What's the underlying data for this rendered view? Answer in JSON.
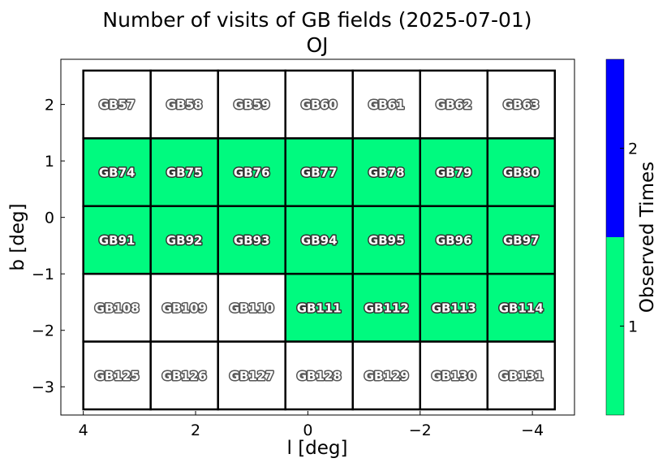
{
  "chart_data": {
    "type": "heatmap",
    "title": "Number of visits of GB fields (2025-07-01)",
    "subtitle": "OJ",
    "xlabel": "l [deg]",
    "ylabel": "b [deg]",
    "xlim": [
      4.4,
      -4.75
    ],
    "ylim": [
      -3.5,
      2.8
    ],
    "x_axis_inverted": true,
    "x_ticks": [
      4,
      2,
      0,
      -2,
      -4
    ],
    "x_tick_labels": [
      "4",
      "2",
      "0",
      "−2",
      "−4"
    ],
    "y_ticks": [
      -3,
      -2,
      -1,
      0,
      1,
      2
    ],
    "y_tick_labels": [
      "−3",
      "−2",
      "−1",
      "0",
      "1",
      "2"
    ],
    "grid": false,
    "columns_l": [
      3.4,
      2.2,
      1.0,
      -0.2,
      -1.4,
      -2.6,
      -3.8
    ],
    "rows_b": [
      2.0,
      0.8,
      -0.4,
      -1.6,
      -2.8
    ],
    "cell_width_deg": 1.2,
    "cell_height_deg": 1.2,
    "fields": [
      [
        "GB57",
        "GB58",
        "GB59",
        "GB60",
        "GB61",
        "GB62",
        "GB63"
      ],
      [
        "GB74",
        "GB75",
        "GB76",
        "GB77",
        "GB78",
        "GB79",
        "GB80"
      ],
      [
        "GB91",
        "GB92",
        "GB93",
        "GB94",
        "GB95",
        "GB96",
        "GB97"
      ],
      [
        "GB108",
        "GB109",
        "GB110",
        "GB111",
        "GB112",
        "GB113",
        "GB114"
      ],
      [
        "GB125",
        "GB126",
        "GB127",
        "GB128",
        "GB129",
        "GB130",
        "GB131"
      ]
    ],
    "visits": [
      [
        0,
        0,
        0,
        0,
        0,
        0,
        0
      ],
      [
        1,
        1,
        1,
        1,
        1,
        1,
        1
      ],
      [
        1,
        1,
        1,
        1,
        1,
        1,
        1
      ],
      [
        0,
        0,
        0,
        1,
        1,
        1,
        1
      ],
      [
        0,
        0,
        0,
        0,
        0,
        0,
        0
      ]
    ],
    "colorbar": {
      "label": "Observed Times",
      "range": [
        0.5,
        2.5
      ],
      "ticks": [
        1,
        2
      ],
      "tick_labels": [
        "1",
        "2"
      ],
      "levels": [
        {
          "value": 1,
          "color": "#00fa7f"
        },
        {
          "value": 2,
          "color": "#0000ff"
        }
      ]
    },
    "colors": {
      "unobserved_fill": "#ffffff",
      "observed_label_fill": "#ffffff",
      "observed_label_stroke": "#333333",
      "unobserved_label_fill": "#ffffff",
      "unobserved_label_stroke": "#555555"
    }
  }
}
